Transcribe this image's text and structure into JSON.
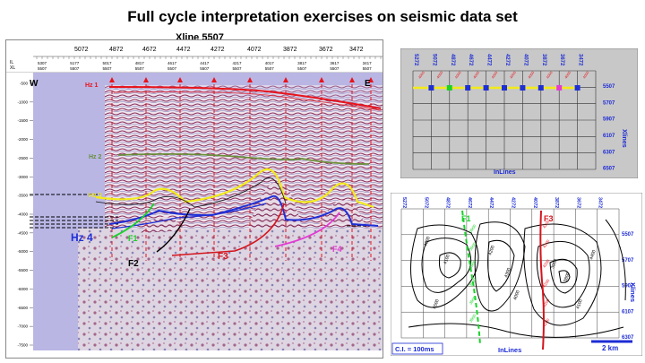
{
  "title": "Full cycle interpretation exercises on seismic data set",
  "seismic": {
    "xline_title": "Xline 5507",
    "top_crosslines": [
      "5072",
      "4872",
      "4672",
      "4472",
      "4272",
      "4072",
      "3872",
      "3672",
      "3472"
    ],
    "row_labels": [
      "IL",
      "XL"
    ],
    "header_cells": [
      [
        "5307",
        "5507"
      ],
      [
        "5177",
        "5507"
      ],
      [
        "5017",
        "5507"
      ],
      [
        "4817",
        "5507"
      ],
      [
        "4617",
        "5507"
      ],
      [
        "4417",
        "5507"
      ],
      [
        "4217",
        "5507"
      ],
      [
        "4017",
        "5507"
      ],
      [
        "3817",
        "5507"
      ],
      [
        "3617",
        "5507"
      ],
      [
        "3417",
        "5507"
      ]
    ],
    "time_ticks": [
      "-500",
      "-1000",
      "-1500",
      "-2000",
      "-2500",
      "-3000",
      "-3500",
      "-4000",
      "-4500",
      "-5000",
      "-5500",
      "-6000",
      "-6500",
      "-7000",
      "-7500"
    ],
    "west_label": "W",
    "east_label": "E",
    "horizons": [
      {
        "name": "Hz 1",
        "color": "#e8141c"
      },
      {
        "name": "Hz 2",
        "color": "#6a8f3a"
      },
      {
        "name": "Hz 3",
        "color": "#f2ea1a"
      },
      {
        "name": "Hz 4",
        "color": "#1f2fd6"
      }
    ],
    "faults": [
      {
        "name": "F1",
        "color": "#19d12a"
      },
      {
        "name": "F2",
        "color": "#000000"
      },
      {
        "name": "F3",
        "color": "#d4141c"
      },
      {
        "name": "F4",
        "color": "#e23ad4"
      }
    ]
  },
  "basemap": {
    "inlines": [
      "5272",
      "5072",
      "4872",
      "4672",
      "4472",
      "4272",
      "4072",
      "3872",
      "3672",
      "3472"
    ],
    "xlines": [
      "5507",
      "5707",
      "5907",
      "6107",
      "6307",
      "6507"
    ],
    "inlines_label": "InLines",
    "xlines_label": "Xlines"
  },
  "contour_map": {
    "inlines": [
      "5272",
      "5072",
      "4872",
      "4672",
      "4472",
      "4272",
      "4072",
      "3872",
      "3672",
      "3472"
    ],
    "xlines": [
      "5507",
      "5707",
      "5907",
      "6107",
      "6307"
    ],
    "inlines_label": "InLines",
    "xlines_label": "Xlines",
    "ci_label": "C.I. = 100ms",
    "scale_label": "2 km",
    "fault_labels": [
      "F1",
      "F3"
    ],
    "contour_values": [
      "4000",
      "4100",
      "4200",
      "4300",
      "3900",
      "3800",
      "4400",
      "4500"
    ]
  },
  "colors": {
    "seismic_bg": "#b9b6e4",
    "basemap_bg": "#c8c8c8",
    "blue_label": "#1c2bd4"
  }
}
